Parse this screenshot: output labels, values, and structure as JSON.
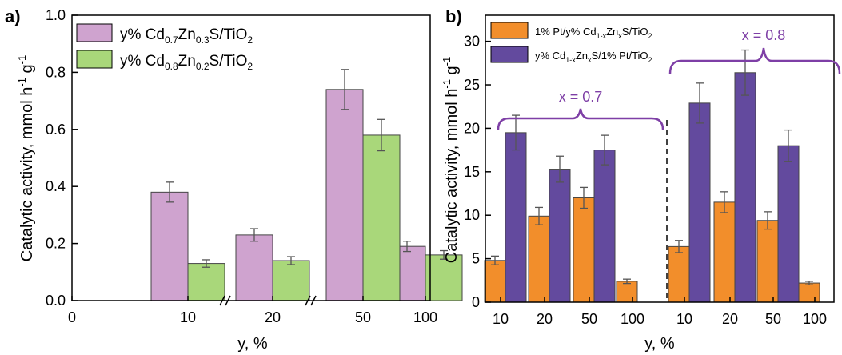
{
  "colors": {
    "purple_light": "#cfa3cf",
    "green_light": "#a9d77a",
    "orange": "#f28e2b",
    "indigo": "#634a9e",
    "bracket": "#7e3fa6",
    "axis": "#000000"
  },
  "chart_data": [
    {
      "type": "bar",
      "panel_label": "a)",
      "ylabel": "Catalytic activity, mmol h",
      "ylabel_unit_sup1": "-1",
      "ylabel_mid": " g",
      "ylabel_unit_sup2": "-1",
      "xlabel": "y, %",
      "ylim": [
        0.0,
        1.0
      ],
      "yticks": [
        "0.0",
        "0.2",
        "0.4",
        "0.6",
        "0.8",
        "1.0"
      ],
      "xticks": [
        "0",
        "10",
        "20",
        "50",
        "100"
      ],
      "categories": [
        "10",
        "20",
        "50",
        "100"
      ],
      "axis_breaks": true,
      "legend_position": "top-left",
      "series": [
        {
          "name": "y% Cd0.7Zn0.3S/TiO2",
          "legend_parts": [
            "y% Cd",
            "0.7",
            "Zn",
            "0.3",
            "S/TiO",
            "2"
          ],
          "color": "#cfa3cf",
          "values": [
            0.38,
            0.23,
            0.74,
            0.19
          ],
          "errors": [
            0.035,
            0.022,
            0.07,
            0.018
          ]
        },
        {
          "name": "y% Cd0.8Zn0.2S/TiO2",
          "legend_parts": [
            "y% Cd",
            "0.8",
            "Zn",
            "0.2",
            "S/TiO",
            "2"
          ],
          "color": "#a9d77a",
          "values": [
            0.13,
            0.14,
            0.58,
            0.16
          ],
          "errors": [
            0.013,
            0.014,
            0.055,
            0.015
          ]
        }
      ]
    },
    {
      "type": "bar",
      "panel_label": "b)",
      "ylabel": "Catalytic activity, mmol h",
      "ylabel_unit_sup1": "-1",
      "ylabel_mid": " g",
      "ylabel_unit_sup2": "-1",
      "xlabel": "y, %",
      "ylim": [
        0,
        33
      ],
      "yticks": [
        "0",
        "5",
        "10",
        "15",
        "20",
        "25",
        "30"
      ],
      "categories": [
        "10",
        "20",
        "50",
        "100",
        "10",
        "20",
        "50",
        "100"
      ],
      "groups": [
        {
          "label": "x = 0.7",
          "categories": [
            "10",
            "20",
            "50",
            "100"
          ]
        },
        {
          "label": "x = 0.8",
          "categories": [
            "10",
            "20",
            "50",
            "100"
          ]
        }
      ],
      "legend_position": "top-left",
      "series": [
        {
          "name": "1% Pt/y% Cd1-xZnxS/TiO2",
          "legend_parts": [
            "1% Pt/y% Cd",
            "1-x",
            "Zn",
            "x",
            "S/TiO",
            "2"
          ],
          "color": "#f28e2b",
          "values": [
            4.8,
            9.9,
            12.0,
            2.4,
            6.4,
            11.5,
            9.4,
            2.2
          ],
          "errors": [
            0.5,
            1.0,
            1.2,
            0.25,
            0.7,
            1.2,
            1.0,
            0.2
          ]
        },
        {
          "name": "y% Cd1-xZnxS/1% Pt/TiO2",
          "legend_parts": [
            "y% Cd",
            "1-x",
            "Zn",
            "x",
            "S/1% Pt/TiO",
            "2"
          ],
          "color": "#634a9e",
          "values": [
            19.5,
            15.3,
            17.5,
            null,
            22.9,
            26.4,
            18.0,
            null
          ],
          "errors": [
            2.0,
            1.5,
            1.7,
            null,
            2.3,
            2.6,
            1.8,
            null
          ]
        }
      ]
    }
  ]
}
